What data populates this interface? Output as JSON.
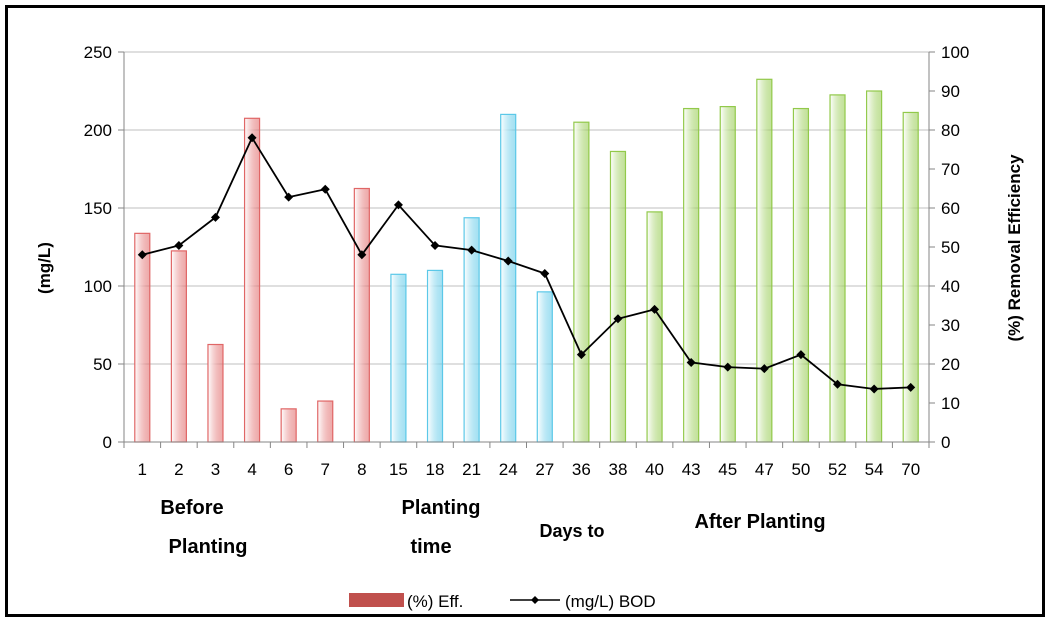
{
  "chart_data": {
    "type": "bar",
    "categories": [
      "1",
      "2",
      "3",
      "4",
      "6",
      "7",
      "8",
      "15",
      "18",
      "21",
      "24",
      "27",
      "36",
      "38",
      "40",
      "43",
      "45",
      "47",
      "50",
      "52",
      "54",
      "70"
    ],
    "series": [
      {
        "name": "(%) Eff.",
        "type": "bar",
        "axis": "right",
        "values": [
          53.5,
          49,
          25,
          83,
          8.5,
          10.5,
          65,
          43,
          44,
          57.5,
          84,
          38.5,
          82,
          74.5,
          59,
          85.5,
          86,
          93,
          85.5,
          89,
          90,
          84.5
        ]
      },
      {
        "name": "(mg/L) BOD",
        "type": "line",
        "axis": "left",
        "values": [
          120,
          126,
          144,
          195,
          157,
          162,
          120,
          152,
          126,
          123,
          116,
          108,
          56,
          79,
          85,
          51,
          48,
          47,
          56,
          37,
          34,
          35
        ]
      }
    ],
    "bar_colors": [
      "red",
      "red",
      "red",
      "red",
      "red",
      "red",
      "red",
      "blue",
      "blue",
      "blue",
      "blue",
      "blue",
      "green",
      "green",
      "green",
      "green",
      "green",
      "green",
      "green",
      "green",
      "green",
      "green"
    ],
    "palette": {
      "red": "#e06666",
      "blue": "#5bc8e8",
      "green": "#92c94a",
      "line": "#000000",
      "legend_swatch": "#c0504d"
    },
    "ylabel": "(mg/L)",
    "y2label": "(%) Removal Efficiency",
    "ylim": [
      0,
      250
    ],
    "y2lim": [
      0,
      100
    ],
    "yticks": [
      "0",
      "50",
      "100",
      "150",
      "200",
      "250"
    ],
    "y2ticks": [
      "0",
      "10",
      "20",
      "30",
      "40",
      "50",
      "60",
      "70",
      "80",
      "90",
      "100"
    ],
    "group_labels": {
      "before_line1": "Before",
      "before_line2": "Planting",
      "planting_line1": "Planting",
      "planting_line2": "time",
      "days_to": "Days to",
      "after": "After Planting"
    },
    "legend": {
      "position": "bottom-center",
      "bar_label": "(%) Eff.",
      "line_label": "(mg/L) BOD"
    },
    "grid": "horizontal"
  }
}
